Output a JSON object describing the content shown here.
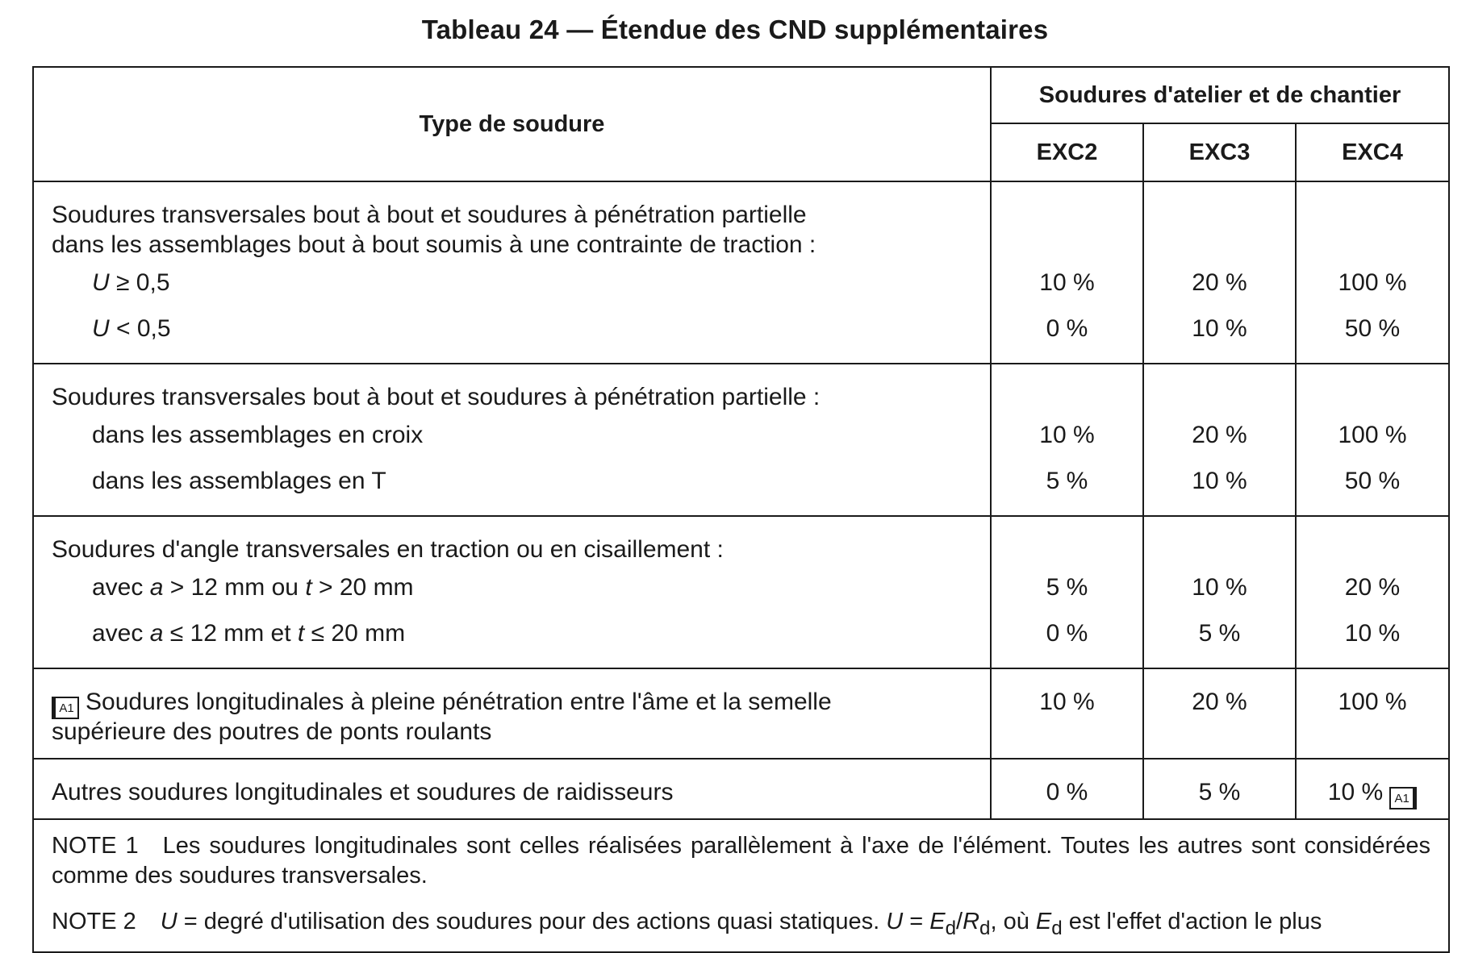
{
  "title": "Tableau 24 — Étendue des CND supplémentaires",
  "header": {
    "type_label": "Type de soudure",
    "group_label": "Soudures d'atelier et de chantier",
    "classes": [
      "EXC2",
      "EXC3",
      "EXC4"
    ]
  },
  "sections": [
    {
      "head": [
        "Soudures transversales bout à bout et soudures à pénétration partielle",
        "dans les assemblages bout à bout soumis à une contrainte de traction :"
      ],
      "rows": [
        {
          "label_var": "U",
          "label_rest": " ≥ 0,5",
          "values": [
            "10 %",
            "20 %",
            "100 %"
          ]
        },
        {
          "label_var": "U",
          "label_rest": " < 0,5",
          "values": [
            "0 %",
            "10 %",
            "50 %"
          ]
        }
      ]
    },
    {
      "head": [
        "Soudures transversales bout à bout et soudures à pénétration partielle :"
      ],
      "rows": [
        {
          "label": "dans les assemblages en croix",
          "values": [
            "10 %",
            "20 %",
            "100 %"
          ]
        },
        {
          "label": "dans les assemblages en T",
          "values": [
            "5 %",
            "10 %",
            "50 %"
          ]
        }
      ]
    },
    {
      "head": [
        "Soudures d'angle transversales en traction ou en cisaillement :"
      ],
      "rows": [
        {
          "label_p1": "avec ",
          "label_v1": "a",
          "label_p2": " > 12 mm ou ",
          "label_v2": "t",
          "label_p3": " > 20 mm",
          "values": [
            "5 %",
            "10 %",
            "20 %"
          ]
        },
        {
          "label_p1": "avec ",
          "label_v1": "a",
          "label_p2": " ≤ 12 mm et ",
          "label_v2": "t",
          "label_p3": " ≤ 20 mm",
          "values": [
            "0 %",
            "5 %",
            "10 %"
          ]
        }
      ]
    },
    {
      "marker": "A1",
      "head": [
        "Soudures longitudinales à pleine pénétration entre l'âme et la semelle",
        "supérieure des poutres de ponts roulants"
      ],
      "values": [
        "10 %",
        "20 %",
        "100 %"
      ]
    },
    {
      "head": [
        "Autres soudures longitudinales et soudures de raidisseurs"
      ],
      "values": [
        "0 %",
        "5 %",
        "10 %"
      ],
      "end_marker": "A1"
    }
  ],
  "notes": {
    "note1_label": "NOTE 1",
    "note1_text": "Les soudures longitudinales sont celles réalisées parallèlement à l'axe de l'élément. Toutes les autres sont considérées comme des soudures transversales.",
    "note2_label": "NOTE 2",
    "note2_u": "U",
    "note2_t1": " = degré d'utilisation des soudures pour des actions quasi statiques. ",
    "note2_u2": "U",
    "note2_eq": " = ",
    "note2_e": "E",
    "note2_sub1": "d",
    "note2_slash": "/",
    "note2_r": "R",
    "note2_sub2": "d",
    "note2_t2": ", où ",
    "note2_e2": "E",
    "note2_sub3": "d",
    "note2_t3": " est l'effet d'action le plus"
  }
}
